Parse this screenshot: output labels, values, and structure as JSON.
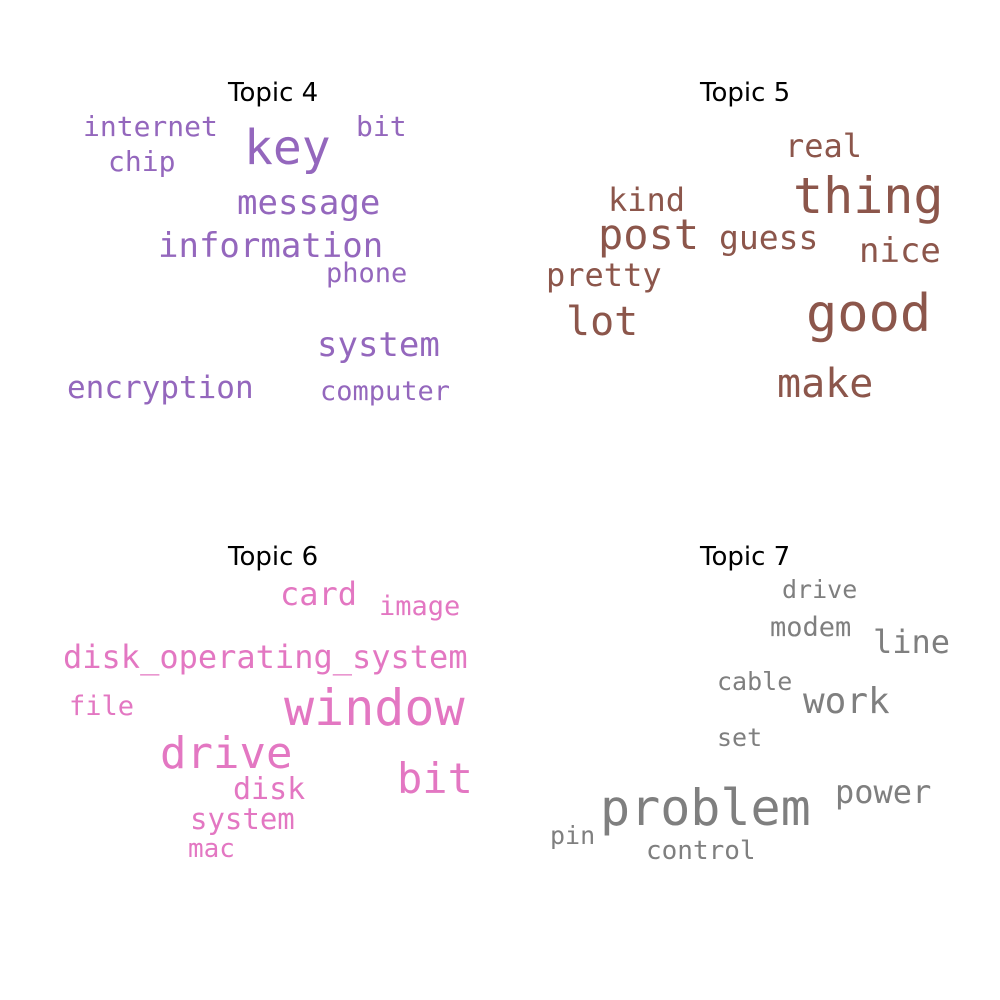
{
  "chart_data": [
    {
      "type": "wordcloud",
      "title": "Topic 4",
      "color": "#9467bd",
      "words": [
        {
          "text": "key",
          "weight": 48
        },
        {
          "text": "information",
          "weight": 34
        },
        {
          "text": "message",
          "weight": 34
        },
        {
          "text": "system",
          "weight": 34
        },
        {
          "text": "encryption",
          "weight": 31
        },
        {
          "text": "internet",
          "weight": 28
        },
        {
          "text": "chip",
          "weight": 28
        },
        {
          "text": "bit",
          "weight": 28
        },
        {
          "text": "phone",
          "weight": 27
        },
        {
          "text": "computer",
          "weight": 27
        }
      ]
    },
    {
      "type": "wordcloud",
      "title": "Topic 5",
      "color": "#8c564b",
      "words": [
        {
          "text": "good",
          "weight": 52
        },
        {
          "text": "thing",
          "weight": 50
        },
        {
          "text": "post",
          "weight": 42
        },
        {
          "text": "make",
          "weight": 40
        },
        {
          "text": "lot",
          "weight": 40
        },
        {
          "text": "nice",
          "weight": 34
        },
        {
          "text": "guess",
          "weight": 33
        },
        {
          "text": "real",
          "weight": 32
        },
        {
          "text": "kind",
          "weight": 32
        },
        {
          "text": "pretty",
          "weight": 32
        }
      ]
    },
    {
      "type": "wordcloud",
      "title": "Topic 6",
      "color": "#e377c2",
      "words": [
        {
          "text": "window",
          "weight": 50
        },
        {
          "text": "drive",
          "weight": 44
        },
        {
          "text": "bit",
          "weight": 42
        },
        {
          "text": "disk_operating_system",
          "weight": 32
        },
        {
          "text": "card",
          "weight": 32
        },
        {
          "text": "disk",
          "weight": 30
        },
        {
          "text": "system",
          "weight": 29
        },
        {
          "text": "image",
          "weight": 27
        },
        {
          "text": "file",
          "weight": 27
        },
        {
          "text": "mac",
          "weight": 26
        }
      ]
    },
    {
      "type": "wordcloud",
      "title": "Topic 7",
      "color": "#7f7f7f",
      "words": [
        {
          "text": "problem",
          "weight": 50
        },
        {
          "text": "work",
          "weight": 36
        },
        {
          "text": "power",
          "weight": 32
        },
        {
          "text": "line",
          "weight": 32
        },
        {
          "text": "modem",
          "weight": 27
        },
        {
          "text": "control",
          "weight": 26
        },
        {
          "text": "drive",
          "weight": 25
        },
        {
          "text": "cable",
          "weight": 25
        },
        {
          "text": "set",
          "weight": 25
        },
        {
          "text": "pin",
          "weight": 25
        }
      ]
    }
  ]
}
